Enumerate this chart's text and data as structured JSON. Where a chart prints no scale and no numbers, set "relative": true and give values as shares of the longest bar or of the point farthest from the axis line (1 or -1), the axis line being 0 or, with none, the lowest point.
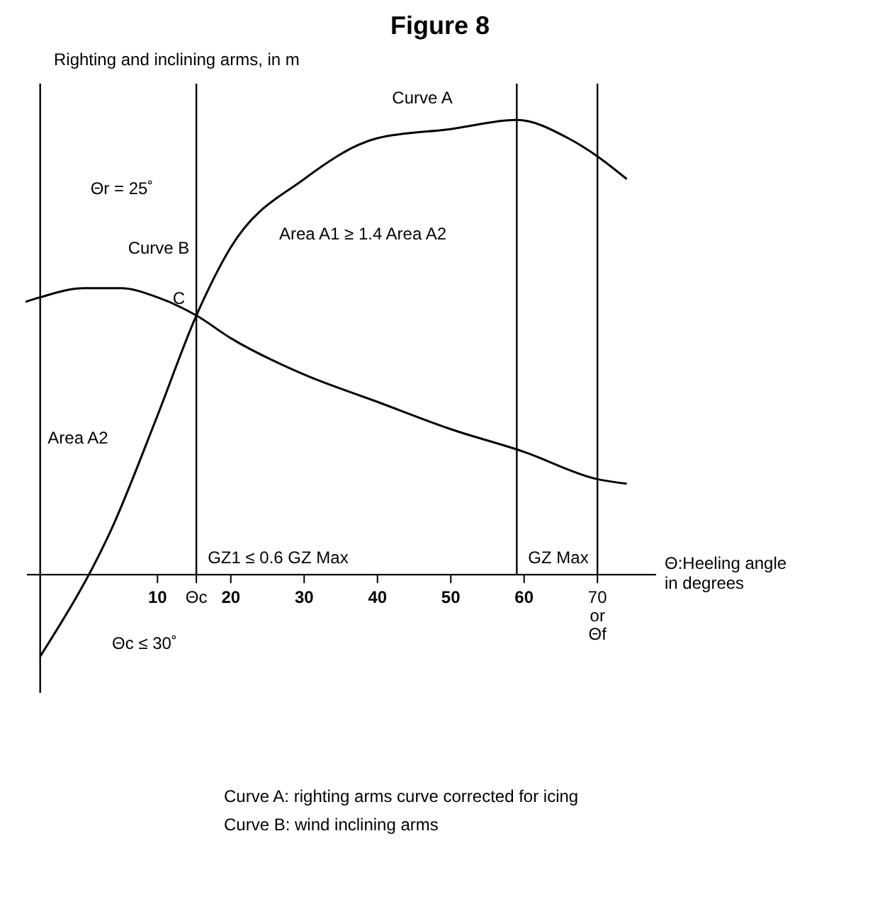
{
  "chart_data": {
    "type": "line",
    "title": "Figure 8",
    "ylabel": "Righting and inclining arms, in m",
    "xlabel": "Θ:Heeling angle in degrees",
    "relative": true,
    "xlim": [
      -8,
      78
    ],
    "xticks": [
      10,
      {
        "value": 15.3,
        "label": "Θc"
      },
      20,
      30,
      40,
      50,
      60,
      {
        "value": 70,
        "label": "70 or Θf"
      }
    ],
    "series": [
      {
        "color": "#000000",
        "x": [
          -6,
          4,
          10,
          15.3,
          20,
          30,
          40,
          50,
          59,
          66,
          70,
          74
        ],
        "values": [
          -0.18,
          0.11,
          0.35,
          0.57,
          0.72,
          0.87,
          0.96,
          0.98,
          1.0,
          0.96,
          0.92,
          0.87
        ]
      },
      {
        "color": "#000000",
        "x": [
          -8,
          -6,
          0,
          5,
          10,
          15.3,
          20,
          30,
          40,
          50,
          60,
          70,
          74
        ],
        "values": [
          0.6,
          0.61,
          0.63,
          0.63,
          0.61,
          0.57,
          0.52,
          0.44,
          0.38,
          0.32,
          0.27,
          0.21,
          0.2
        ]
      }
    ],
    "ref_lines": [
      {
        "axis": "x",
        "value": -6,
        "color": "#000000"
      },
      {
        "axis": "x",
        "value": 15.3,
        "label": "GZ1 ≤ 0.6 GZ Max",
        "color": "#000000"
      },
      {
        "axis": "x",
        "value": 59,
        "label": "GZ Max",
        "color": "#000000"
      },
      {
        "axis": "x",
        "value": 70,
        "color": "#000000"
      }
    ],
    "annotations": [
      "Curve A",
      "Curve B",
      {
        "text": "C",
        "x": 15.3,
        "y": 0.57
      },
      "Area A1 ≥ 1.4 Area A2",
      "Area A2",
      "Θr = 25˚",
      "Θc ≤ 30˚",
      "Curve A: righting arms curve corrected for icing",
      "Curve B: wind inclining arms"
    ],
    "marker": "none",
    "line_style": "solid",
    "grid": false,
    "legend": false
  }
}
